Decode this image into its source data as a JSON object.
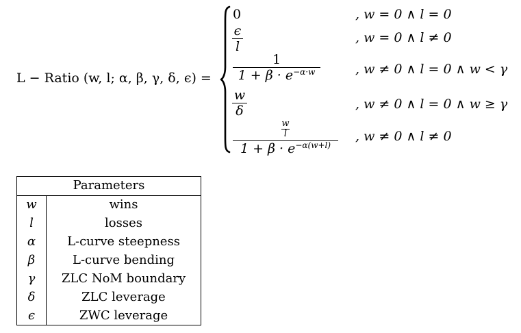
{
  "equation": {
    "lhs": "L − Ratio (w, l; α, β, γ, δ, ϵ) =",
    "cases": [
      {
        "value": "0",
        "condition": ", w = 0 ∧ l = 0"
      },
      {
        "value_num": "ϵ",
        "value_den": "l",
        "condition": ", w = 0 ∧ l ≠ 0"
      },
      {
        "value_num": "1",
        "value_den_prefix": "1 + β · e",
        "value_den_exp": "−α·w",
        "condition": ", w ≠ 0 ∧ l = 0 ∧ w < γ"
      },
      {
        "value_num": "w",
        "value_den": "δ",
        "condition": ", w ≠ 0 ∧ l = 0 ∧ w ≥ γ"
      },
      {
        "value_num_num": "w",
        "value_num_den": "l",
        "value_den_prefix": "1 + β · e",
        "value_den_exp": "−α(w+l)",
        "condition": ", w ≠ 0 ∧ l ≠ 0"
      }
    ]
  },
  "table": {
    "header": "Parameters",
    "rows": [
      {
        "symbol": "w",
        "description": "wins"
      },
      {
        "symbol": "l",
        "description": "losses"
      },
      {
        "symbol": "α",
        "description": "L-curve steepness"
      },
      {
        "symbol": "β",
        "description": "L-curve bending"
      },
      {
        "symbol": "γ",
        "description": "ZLC NoM boundary"
      },
      {
        "symbol": "δ",
        "description": "ZLC leverage"
      },
      {
        "symbol": "ϵ",
        "description": "ZWC leverage"
      }
    ]
  }
}
